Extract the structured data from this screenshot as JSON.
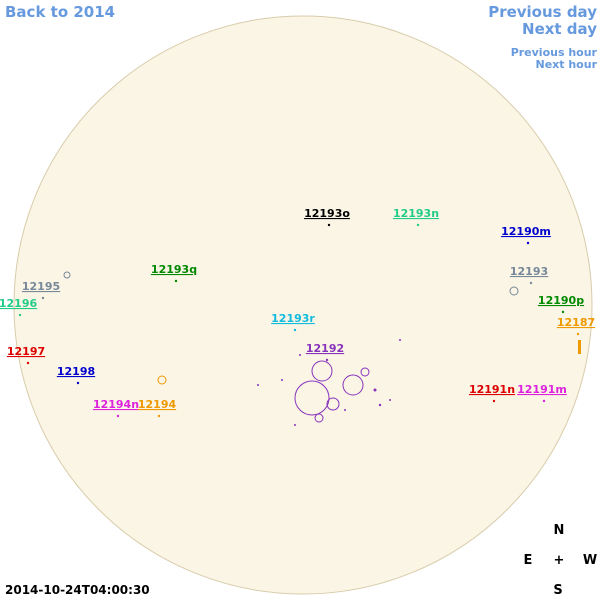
{
  "nav": {
    "back": "Back to 2014",
    "previous_day": "Previous day",
    "next_day": "Next day",
    "previous_hour": "Previous hour",
    "next_hour": "Next hour"
  },
  "regions": [
    {
      "label": "12193o",
      "color": "#000000"
    },
    {
      "label": "12193n",
      "color": "#22cc88"
    },
    {
      "label": "12190m",
      "color": "#0000cc"
    },
    {
      "label": "12193q",
      "color": "#008800"
    },
    {
      "label": "12193",
      "color": "#778899"
    },
    {
      "label": "12195",
      "color": "#778899"
    },
    {
      "label": "12196",
      "color": "#22cc88"
    },
    {
      "label": "12190p",
      "color": "#008800"
    },
    {
      "label": "12193r",
      "color": "#11bbdd"
    },
    {
      "label": "12187",
      "color": "#ee9900"
    },
    {
      "label": "12192",
      "color": "#8833bb"
    },
    {
      "label": "12197",
      "color": "#dd0000"
    },
    {
      "label": "12198",
      "color": "#0000cc"
    },
    {
      "label": "12191n",
      "color": "#dd0000"
    },
    {
      "label": "12191m",
      "color": "#dd22dd"
    },
    {
      "label": "12194n",
      "color": "#dd22dd"
    },
    {
      "label": "12194",
      "color": "#ee9900"
    }
  ],
  "compass": {
    "north": "N",
    "east": "E",
    "center": "+",
    "west": "W",
    "south": "S"
  },
  "timestamp": "2014-10-24T04:00:30"
}
